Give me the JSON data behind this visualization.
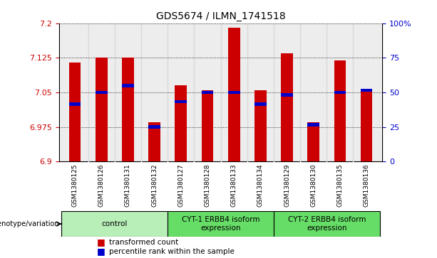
{
  "title": "GDS5674 / ILMN_1741518",
  "samples": [
    "GSM1380125",
    "GSM1380126",
    "GSM1380131",
    "GSM1380132",
    "GSM1380127",
    "GSM1380128",
    "GSM1380133",
    "GSM1380134",
    "GSM1380129",
    "GSM1380130",
    "GSM1380135",
    "GSM1380136"
  ],
  "red_values": [
    7.115,
    7.125,
    7.125,
    6.985,
    7.065,
    7.055,
    7.19,
    7.055,
    7.135,
    6.985,
    7.12,
    7.055
  ],
  "blue_values": [
    7.025,
    7.05,
    7.065,
    6.975,
    7.03,
    7.05,
    7.05,
    7.025,
    7.045,
    6.98,
    7.05,
    7.055
  ],
  "ylim_left": [
    6.9,
    7.2
  ],
  "ylim_right": [
    0,
    100
  ],
  "yticks_left": [
    6.9,
    6.975,
    7.05,
    7.125,
    7.2
  ],
  "yticks_right": [
    0,
    25,
    50,
    75,
    100
  ],
  "ytick_labels_left": [
    "6.9",
    "6.975",
    "7.05",
    "7.125",
    "7.2"
  ],
  "ytick_labels_right": [
    "0",
    "25",
    "50",
    "75",
    "100%"
  ],
  "groups_info": [
    {
      "start": 0,
      "end": 3,
      "label": "control",
      "color": "#b8eeb8"
    },
    {
      "start": 4,
      "end": 7,
      "label": "CYT-1 ERBB4 isoform\nexpression",
      "color": "#66dd66"
    },
    {
      "start": 8,
      "end": 11,
      "label": "CYT-2 ERBB4 isoform\nexpression",
      "color": "#66dd66"
    }
  ],
  "bar_color": "#cc0000",
  "blue_color": "#0000cc",
  "bar_width": 0.45,
  "base_value": 6.9,
  "bg_col_color": "#cccccc",
  "plot_bg": "#ffffff",
  "ylabel_left_color": "#cc0000",
  "ylabel_right_color": "#0000cc",
  "legend_items": [
    "transformed count",
    "percentile rank within the sample"
  ],
  "genotype_label": "genotype/variation",
  "title_fontsize": 10,
  "tick_fontsize": 8,
  "sample_fontsize": 6.5,
  "group_fontsize": 7.5,
  "legend_fontsize": 7.5
}
